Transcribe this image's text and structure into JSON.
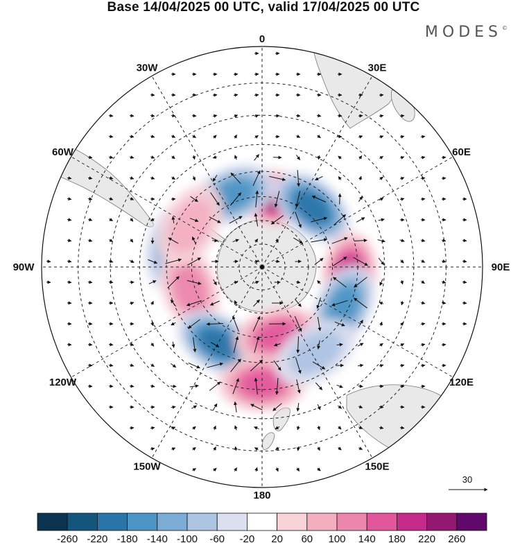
{
  "title": "Base 14/04/2025 00 UTC, valid 17/04/2025 00 UTC",
  "brand": "MODES",
  "brand_mark": "©",
  "longitude_labels": [
    {
      "text": "0",
      "lon": 0
    },
    {
      "text": "30E",
      "lon": 30
    },
    {
      "text": "60E",
      "lon": 60
    },
    {
      "text": "90E",
      "lon": 90
    },
    {
      "text": "120E",
      "lon": 120
    },
    {
      "text": "150E",
      "lon": 150
    },
    {
      "text": "180",
      "lon": 180
    },
    {
      "text": "150W",
      "lon": -150
    },
    {
      "text": "120W",
      "lon": -120
    },
    {
      "text": "90W",
      "lon": -90
    },
    {
      "text": "60W",
      "lon": -60
    },
    {
      "text": "30W",
      "lon": -30
    }
  ],
  "reference_vector": "30",
  "colorbar": {
    "colors": [
      "#0b3350",
      "#14557e",
      "#2a74a8",
      "#4b94c4",
      "#7cacd6",
      "#adc3e2",
      "#dcdff0",
      "#ffffff",
      "#f7d3d8",
      "#f3aec0",
      "#ec86ad",
      "#e2579c",
      "#c52a8a",
      "#941772",
      "#60086b"
    ],
    "ticks": [
      "-260",
      "-220",
      "-180",
      "-140",
      "-100",
      "-60",
      "-20",
      "20",
      "60",
      "100",
      "140",
      "180",
      "220",
      "260"
    ]
  },
  "chart_data": {
    "type": "heatmap",
    "projection": "south-polar-stereographic",
    "field": "anomaly",
    "base": "14/04/2025 00 UTC",
    "valid": "17/04/2025 00 UTC",
    "levels": [
      -260,
      -220,
      -180,
      -140,
      -100,
      -60,
      -20,
      20,
      60,
      100,
      140,
      180,
      220,
      260
    ],
    "anomaly_centers": [
      {
        "lon": 10,
        "lat": -60,
        "value": 240
      },
      {
        "lon": 40,
        "lat": -57,
        "value": -200
      },
      {
        "lon": -22,
        "lat": -57,
        "value": -160
      },
      {
        "lon": 96,
        "lat": -53,
        "value": 180
      },
      {
        "lon": 116,
        "lat": -52,
        "value": -150
      },
      {
        "lon": -78,
        "lat": -52,
        "value": -120
      },
      {
        "lon": -107,
        "lat": -58,
        "value": 120
      },
      {
        "lon": -150,
        "lat": -53,
        "value": -210
      },
      {
        "lon": 167,
        "lat": -60,
        "value": 150
      },
      {
        "lon": 180,
        "lat": -42,
        "value": 170
      },
      {
        "lon": 148,
        "lat": -48,
        "value": -80
      },
      {
        "lon": -60,
        "lat": -55,
        "value": 80
      }
    ]
  }
}
